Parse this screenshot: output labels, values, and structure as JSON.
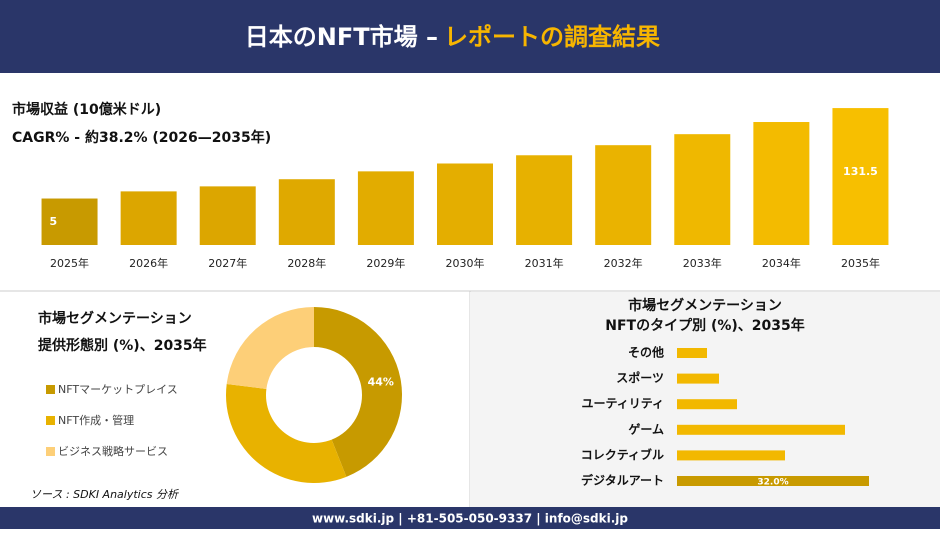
{
  "header": {
    "title": "日本のNFT市場 –",
    "title_accent": "レポートの調査結果"
  },
  "chart_data": [
    {
      "type": "bar",
      "title": "市場収益 (10億米ドル)",
      "subtitle": "CAGR% - 約38.2% (2026—2035年)",
      "categories": [
        "2025年",
        "2026年",
        "2027年",
        "2028年",
        "2029年",
        "2030年",
        "2031年",
        "2032年",
        "2033年",
        "2034年",
        "2035年"
      ],
      "values": [
        5,
        15,
        22,
        32,
        43,
        54,
        65.5,
        79.6,
        95,
        112,
        131.5
      ],
      "colors": [
        "#c89a00",
        "#dca600",
        "#dca600",
        "#dfa900",
        "#e2ac00",
        "#e4ae00",
        "#e7b100",
        "#eab300",
        "#efb800",
        "#f3bb00",
        "#f7bf00"
      ],
      "ylim": [
        -60,
        140
      ]
    },
    {
      "type": "pie",
      "title": "市場セグメンテーション",
      "subtitle": "提供形態別 (%)、2035年",
      "categories": [
        "NFTマーケットプレイス",
        "NFT作成・管理",
        "ビジネス戦略サービス"
      ],
      "values": [
        44,
        33,
        23
      ],
      "value_labels": [
        "44%",
        null,
        null
      ],
      "colors": [
        "#c79a00",
        "#e8b200",
        "#fdcf78"
      ]
    },
    {
      "type": "hbar",
      "title": "市場セグメンテーション",
      "subtitle": "NFTのタイプ別 (%)、2035年",
      "categories": [
        "その他",
        "スポーツ",
        "ユーティリティ",
        "ゲーム",
        "コレクティブル",
        "デジタルアート"
      ],
      "values": [
        5,
        7,
        10,
        28,
        18,
        32
      ],
      "value_labels": [
        null,
        null,
        null,
        null,
        null,
        "32.0%"
      ],
      "color": "#f2b800",
      "last_color": "#c89a00",
      "xlim": [
        0,
        36
      ]
    }
  ],
  "source": "ソース : SDKI Analytics 分析",
  "footer": "www.sdki.jp | +81-505-050-9337 | info@sdki.jp"
}
